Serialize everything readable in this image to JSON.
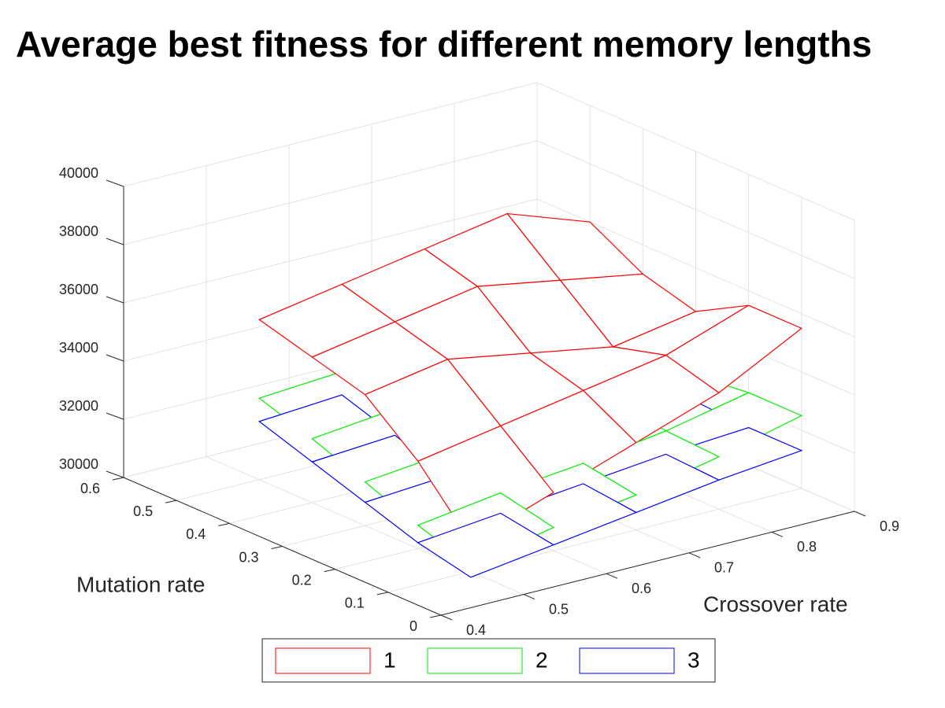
{
  "chart_data": {
    "type": "mesh3d",
    "title": "Average best fitness for different memory lengths",
    "x_label": "Crossover rate",
    "y_label": "Mutation rate",
    "x": [
      0.5,
      0.6,
      0.7,
      0.8,
      0.9
    ],
    "y": [
      0.1,
      0.2,
      0.3,
      0.4,
      0.5
    ],
    "xlim": [
      0.4,
      0.9
    ],
    "ylim": [
      0,
      0.6
    ],
    "zlim": [
      30000,
      40000
    ],
    "xticks": [
      0.4,
      0.5,
      0.6,
      0.7,
      0.8,
      0.9
    ],
    "yticks": [
      0,
      0.1,
      0.2,
      0.3,
      0.4,
      0.5,
      0.6
    ],
    "zticks": [
      30000,
      32000,
      34000,
      36000,
      38000,
      40000
    ],
    "grid": true,
    "series": [
      {
        "name": "1",
        "color": "#ff0000",
        "z": [
          [
            31000,
            32000,
            33000,
            34000,
            35500
          ],
          [
            33000,
            33500,
            34000,
            34500,
            35500
          ],
          [
            34500,
            35000,
            34500,
            34000,
            34500
          ],
          [
            35000,
            35500,
            36000,
            35500,
            35000
          ],
          [
            35500,
            36000,
            36500,
            37000,
            36000
          ]
        ]
      },
      {
        "name": "2",
        "color": "#00ee00",
        "z": [
          [
            30200,
            30800,
            31200,
            31800,
            32500
          ],
          [
            30800,
            31200,
            31500,
            31900,
            32500
          ],
          [
            31500,
            31800,
            32000,
            32200,
            32300
          ],
          [
            32200,
            32500,
            32700,
            32800,
            32600
          ],
          [
            32800,
            33000,
            33200,
            33400,
            33300
          ]
        ]
      },
      {
        "name": "3",
        "color": "#0000ff",
        "z": [
          [
            29800,
            30200,
            30600,
            31000,
            31300
          ],
          [
            30200,
            30500,
            30800,
            31100,
            31300
          ],
          [
            30800,
            31000,
            31100,
            31300,
            31400
          ],
          [
            31400,
            31600,
            31700,
            31700,
            31600
          ],
          [
            32000,
            32200,
            32300,
            32300,
            32200
          ]
        ]
      }
    ]
  }
}
